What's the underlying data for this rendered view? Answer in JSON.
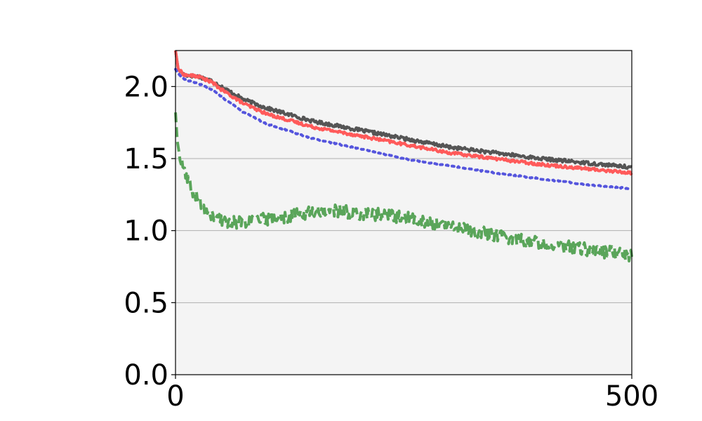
{
  "chart_data": {
    "type": "line",
    "title": "",
    "xlabel": "",
    "ylabel": "",
    "xlim": [
      0,
      500
    ],
    "ylim": [
      0,
      2.25
    ],
    "x_ticks": [
      {
        "value": 0,
        "label": "0"
      },
      {
        "value": 500,
        "label": "500"
      }
    ],
    "y_ticks": [
      {
        "value": 0.0,
        "label": "0.0"
      },
      {
        "value": 0.5,
        "label": "0.5"
      },
      {
        "value": 1.0,
        "label": "1.0"
      },
      {
        "value": 1.5,
        "label": "1.5"
      },
      {
        "value": 2.0,
        "label": "2.0"
      }
    ],
    "grid": "horizontal",
    "background_color": "#f4f4f4",
    "series": [
      {
        "color": "#555555",
        "style": "solid",
        "noise": 0.012,
        "x": [
          0,
          3,
          10,
          25,
          40,
          50,
          75,
          100,
          150,
          200,
          250,
          300,
          350,
          400,
          450,
          500
        ],
        "y": [
          2.25,
          2.12,
          2.08,
          2.07,
          2.04,
          2.0,
          1.91,
          1.85,
          1.76,
          1.7,
          1.64,
          1.58,
          1.54,
          1.5,
          1.47,
          1.44
        ]
      },
      {
        "color": "#ff5a5a",
        "style": "solid",
        "noise": 0.01,
        "x": [
          0,
          3,
          10,
          25,
          40,
          50,
          75,
          100,
          150,
          200,
          250,
          300,
          350,
          400,
          450,
          500
        ],
        "y": [
          2.25,
          2.12,
          2.08,
          2.07,
          2.03,
          1.98,
          1.88,
          1.81,
          1.72,
          1.66,
          1.6,
          1.54,
          1.5,
          1.46,
          1.43,
          1.4
        ]
      },
      {
        "color": "#5555dd",
        "style": "dotted",
        "noise": 0.004,
        "x": [
          0,
          3,
          10,
          25,
          40,
          50,
          75,
          100,
          150,
          200,
          250,
          300,
          350,
          400,
          450,
          500
        ],
        "y": [
          2.12,
          2.09,
          2.05,
          2.02,
          1.98,
          1.93,
          1.82,
          1.74,
          1.64,
          1.57,
          1.5,
          1.45,
          1.4,
          1.36,
          1.32,
          1.29
        ]
      },
      {
        "color": "#5aa55a",
        "style": "dashed",
        "noise": 0.045,
        "x": [
          0,
          2,
          5,
          10,
          15,
          20,
          30,
          40,
          50,
          60,
          75,
          100,
          125,
          150,
          175,
          200,
          225,
          250,
          275,
          300,
          325,
          350,
          375,
          400,
          425,
          450,
          475,
          500
        ],
        "y": [
          1.82,
          1.62,
          1.5,
          1.4,
          1.32,
          1.26,
          1.16,
          1.1,
          1.07,
          1.06,
          1.06,
          1.08,
          1.1,
          1.13,
          1.14,
          1.12,
          1.11,
          1.09,
          1.06,
          1.03,
          1.0,
          0.97,
          0.94,
          0.92,
          0.89,
          0.87,
          0.85,
          0.83
        ]
      }
    ]
  }
}
